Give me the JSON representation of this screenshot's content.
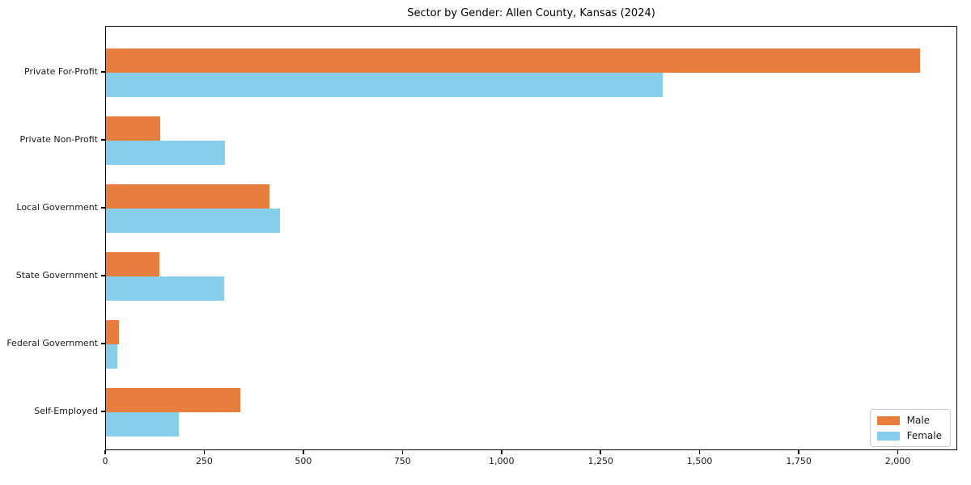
{
  "chart_data": {
    "type": "bar",
    "orientation": "horizontal",
    "title": "Sector by Gender: Allen County, Kansas (2024)",
    "categories": [
      "Private For-Profit",
      "Private Non-Profit",
      "Local Government",
      "State Government",
      "Federal Government",
      "Self-Employed"
    ],
    "series": [
      {
        "name": "Male",
        "color": "#e87e3d",
        "values": [
          2057,
          137,
          414,
          134,
          32,
          340
        ]
      },
      {
        "name": "Female",
        "color": "#87ceeb",
        "values": [
          1407,
          301,
          440,
          299,
          28,
          184
        ]
      }
    ],
    "xlabel": "",
    "ylabel": "",
    "xlim": [
      0,
      2150
    ],
    "xticks": [
      0,
      250,
      500,
      750,
      1000,
      1250,
      1500,
      1750,
      2000
    ],
    "xtick_labels": [
      "0",
      "250",
      "500",
      "750",
      "1,000",
      "1,250",
      "1,500",
      "1,750",
      "2,000"
    ],
    "grid": false,
    "legend": {
      "position": "lower-right",
      "entries": [
        "Male",
        "Female"
      ]
    }
  }
}
